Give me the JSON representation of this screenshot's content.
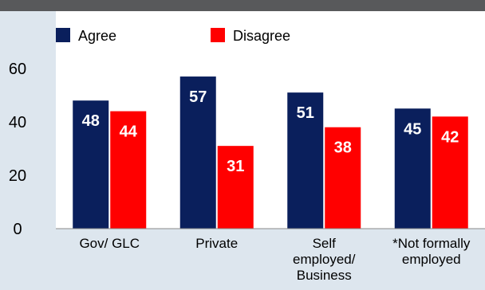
{
  "chart_data": {
    "type": "bar",
    "categories": [
      [
        "Gov/ GLC"
      ],
      [
        "Private"
      ],
      [
        "Self",
        "employed/",
        "Business"
      ],
      [
        "*Not formally",
        "employed"
      ]
    ],
    "series": [
      {
        "name": "Agree",
        "color": "#0a1f5c",
        "values": [
          48,
          57,
          51,
          45
        ]
      },
      {
        "name": "Disagree",
        "color": "#ff0000",
        "values": [
          44,
          31,
          38,
          42
        ]
      }
    ],
    "ylim": [
      0,
      60
    ],
    "yticks": [
      0,
      20,
      40,
      60
    ],
    "legend_position": "top",
    "grid": false,
    "colors": {
      "background": "#dde6ee",
      "plot_background": "#ffffff",
      "header_bar": "#58595b"
    }
  }
}
